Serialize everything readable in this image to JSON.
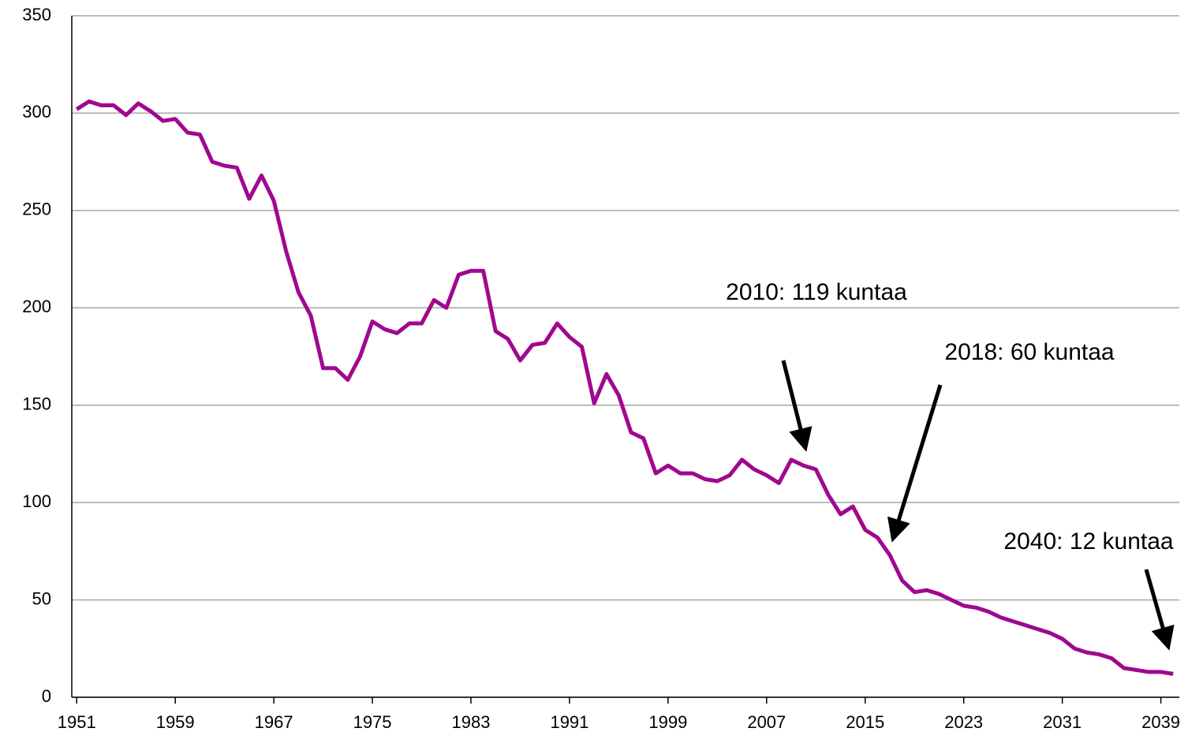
{
  "chart_data": {
    "type": "line",
    "x": [
      1951,
      1952,
      1953,
      1954,
      1955,
      1956,
      1957,
      1958,
      1959,
      1960,
      1961,
      1962,
      1963,
      1964,
      1965,
      1966,
      1967,
      1968,
      1969,
      1970,
      1971,
      1972,
      1973,
      1974,
      1975,
      1976,
      1977,
      1978,
      1979,
      1980,
      1981,
      1982,
      1983,
      1984,
      1985,
      1986,
      1987,
      1988,
      1989,
      1990,
      1991,
      1992,
      1993,
      1994,
      1995,
      1996,
      1997,
      1998,
      1999,
      2000,
      2001,
      2002,
      2003,
      2004,
      2005,
      2006,
      2007,
      2008,
      2009,
      2010,
      2011,
      2012,
      2013,
      2014,
      2015,
      2016,
      2017,
      2018,
      2019,
      2020,
      2021,
      2022,
      2023,
      2024,
      2025,
      2026,
      2027,
      2028,
      2029,
      2030,
      2031,
      2032,
      2033,
      2034,
      2035,
      2036,
      2037,
      2038,
      2039,
      2040
    ],
    "series": [
      {
        "color": "#a0088f",
        "values": [
          302,
          306,
          304,
          304,
          299,
          305,
          301,
          296,
          297,
          290,
          289,
          275,
          273,
          272,
          256,
          268,
          255,
          229,
          208,
          196,
          169,
          169,
          163,
          175,
          193,
          189,
          187,
          192,
          192,
          204,
          200,
          217,
          219,
          219,
          188,
          184,
          173,
          181,
          182,
          192,
          185,
          180,
          151,
          166,
          155,
          136,
          133,
          115,
          119,
          115,
          115,
          112,
          111,
          114,
          122,
          117,
          114,
          110,
          122,
          119,
          117,
          104,
          94,
          98,
          86,
          82,
          73,
          60,
          54,
          55,
          53,
          50,
          47,
          46,
          44,
          41,
          39,
          37,
          35,
          33,
          30,
          25,
          23,
          22,
          20,
          15,
          14,
          13,
          13,
          12
        ]
      }
    ],
    "xlim": [
      1950.6,
      2040.5
    ],
    "xticks": [
      1951,
      1959,
      1967,
      1975,
      1983,
      1991,
      1999,
      2007,
      2015,
      2023,
      2031,
      2039
    ],
    "ylim": [
      0,
      350
    ],
    "yticks": [
      0,
      50,
      100,
      150,
      200,
      250,
      300,
      350
    ],
    "grid": true,
    "annotations": [
      "2010: 119 kuntaa",
      "2018: 60 kuntaa",
      "2040: 12 kuntaa"
    ]
  }
}
